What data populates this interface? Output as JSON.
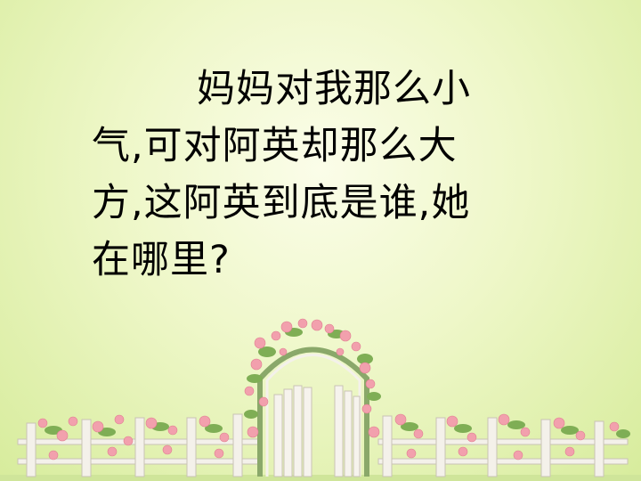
{
  "slide": {
    "background_colors": [
      "#fbfde9",
      "#eef7c8",
      "#d7ec9c"
    ],
    "text_lines": [
      "妈妈对我那么小",
      "气,可对阿英却那么大",
      "方,这阿英到底是谁,她",
      "在哪里?"
    ]
  },
  "illustration": {
    "name": "rose-arch-garden-fence",
    "fence_color": "#f4f1ea",
    "rose_color": "#f2a0ad",
    "leaf_color": "#7fae55"
  }
}
